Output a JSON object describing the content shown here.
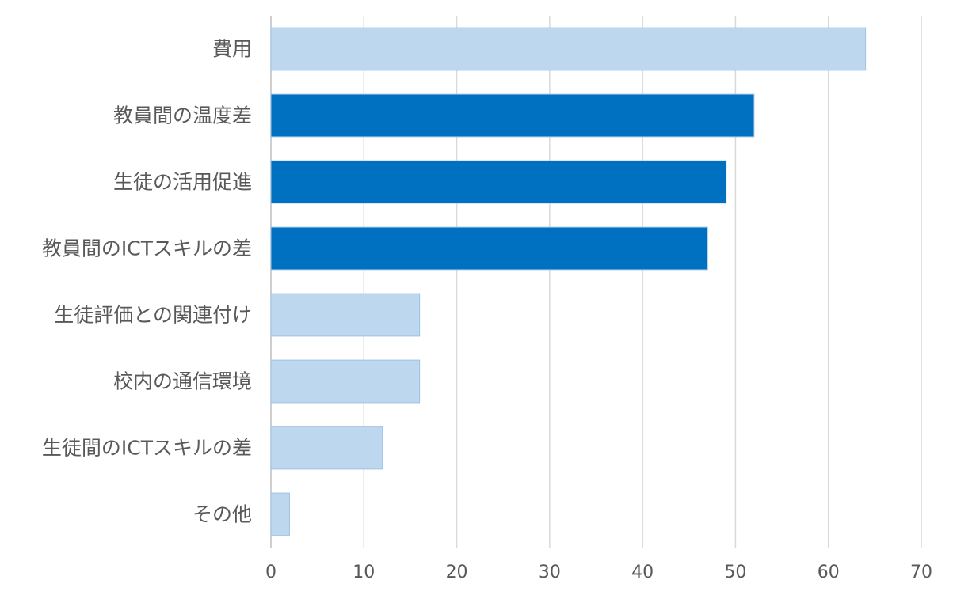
{
  "chart_data": {
    "type": "bar",
    "orientation": "horizontal",
    "title": "",
    "xlabel": "",
    "ylabel": "",
    "categories": [
      "費用",
      "教員間の温度差",
      "生徒の活用促進",
      "教員間のICTスキルの差",
      "生徒評価との関連付け",
      "校内の通信環境",
      "生徒間のICTスキルの差",
      "その他"
    ],
    "values": [
      64,
      52,
      49,
      47,
      16,
      16,
      12,
      2
    ],
    "highlighted": [
      false,
      true,
      true,
      true,
      false,
      false,
      false,
      false
    ],
    "xlim": [
      0,
      70
    ],
    "xticks": [
      "0",
      "10",
      "20",
      "30",
      "40",
      "50",
      "60",
      "70"
    ],
    "grid": true,
    "legend": "none",
    "colors": {
      "bar_default": "#bdd7ee",
      "bar_highlight": "#0070c0",
      "gridline": "#d9d9d9",
      "text": "#595959"
    }
  }
}
